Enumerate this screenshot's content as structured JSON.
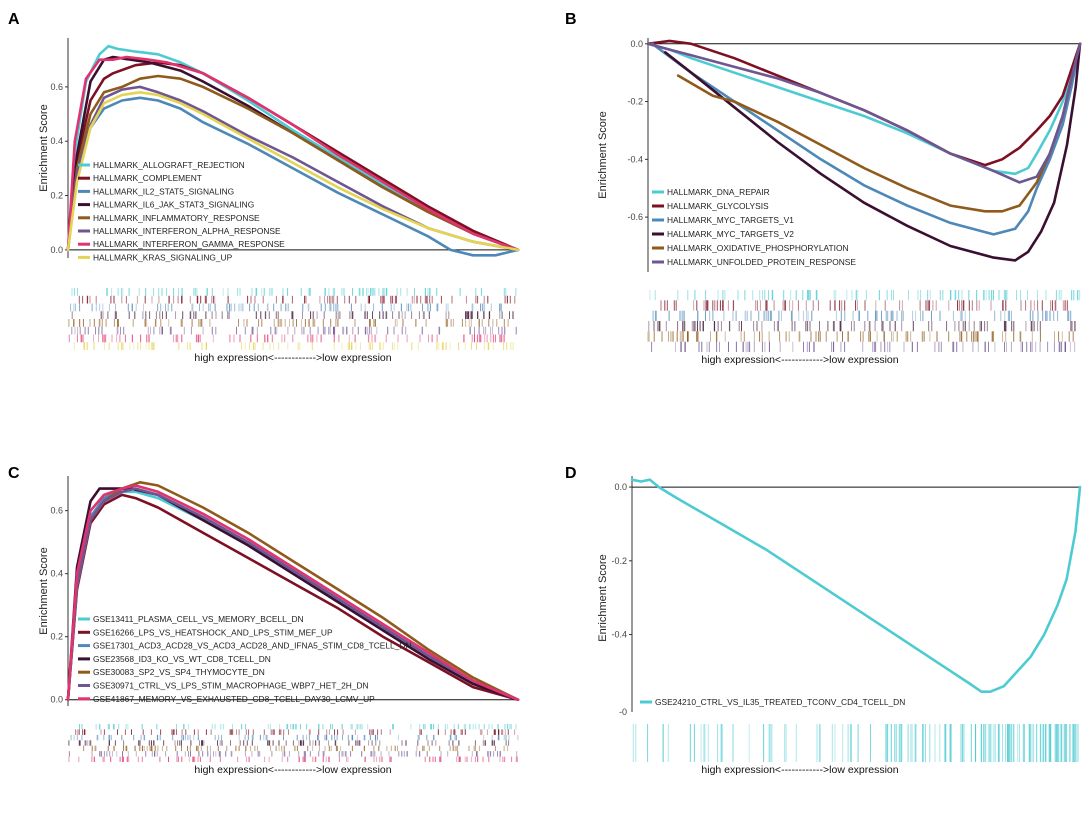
{
  "figure": {
    "palette_note": "GSEA enrichment plots"
  },
  "chart_data": [
    {
      "panel": "A",
      "type": "line",
      "xlabel": "high expression<------------>low expression",
      "ylabel": "Enrichment Score",
      "ylim": [
        -0.03,
        0.78
      ],
      "yticks": [
        0.0,
        0.2,
        0.4,
        0.6
      ],
      "ytick_labels": [
        "0.0",
        "0.2",
        "0.4",
        "0.6"
      ],
      "xlim": [
        0,
        1
      ],
      "legend_position": "lower-left",
      "series": [
        {
          "name": "HALLMARK_ALLOGRAFT_REJECTION",
          "color": "#4ecbd2",
          "x": [
            0,
            0.015,
            0.04,
            0.07,
            0.09,
            0.11,
            0.15,
            0.2,
            0.25,
            0.3,
            0.4,
            0.5,
            0.6,
            0.7,
            0.8,
            0.9,
            0.95,
            1.0
          ],
          "y": [
            0.0,
            0.36,
            0.62,
            0.72,
            0.75,
            0.74,
            0.73,
            0.72,
            0.69,
            0.65,
            0.55,
            0.44,
            0.34,
            0.24,
            0.15,
            0.06,
            0.03,
            0.0
          ]
        },
        {
          "name": "HALLMARK_COMPLEMENT",
          "color": "#7d1022",
          "x": [
            0,
            0.02,
            0.05,
            0.08,
            0.1,
            0.15,
            0.2,
            0.25,
            0.3,
            0.4,
            0.5,
            0.6,
            0.7,
            0.8,
            0.9,
            1.0
          ],
          "y": [
            0.0,
            0.33,
            0.55,
            0.63,
            0.65,
            0.68,
            0.69,
            0.68,
            0.65,
            0.56,
            0.46,
            0.36,
            0.26,
            0.16,
            0.07,
            0.0
          ]
        },
        {
          "name": "HALLMARK_IL2_STAT5_SIGNALING",
          "color": "#4d88b8",
          "x": [
            0,
            0.02,
            0.05,
            0.08,
            0.12,
            0.16,
            0.2,
            0.25,
            0.3,
            0.4,
            0.5,
            0.6,
            0.7,
            0.8,
            0.85,
            0.9,
            0.95,
            1.0
          ],
          "y": [
            0.0,
            0.28,
            0.45,
            0.52,
            0.55,
            0.56,
            0.55,
            0.52,
            0.47,
            0.39,
            0.3,
            0.21,
            0.13,
            0.05,
            0.0,
            -0.02,
            -0.02,
            0.0
          ]
        },
        {
          "name": "HALLMARK_IL6_JAK_STAT3_SIGNALING",
          "color": "#3a0f2f",
          "x": [
            0,
            0.02,
            0.05,
            0.08,
            0.1,
            0.14,
            0.18,
            0.25,
            0.3,
            0.4,
            0.5,
            0.6,
            0.7,
            0.8,
            0.9,
            1.0
          ],
          "y": [
            0.0,
            0.35,
            0.62,
            0.7,
            0.71,
            0.7,
            0.69,
            0.66,
            0.62,
            0.53,
            0.43,
            0.33,
            0.23,
            0.14,
            0.06,
            0.0
          ]
        },
        {
          "name": "HALLMARK_INFLAMMATORY_RESPONSE",
          "color": "#8f5b1c",
          "x": [
            0,
            0.02,
            0.05,
            0.08,
            0.12,
            0.16,
            0.2,
            0.25,
            0.3,
            0.4,
            0.5,
            0.6,
            0.7,
            0.8,
            0.9,
            1.0
          ],
          "y": [
            0.0,
            0.3,
            0.5,
            0.58,
            0.6,
            0.63,
            0.64,
            0.63,
            0.6,
            0.52,
            0.43,
            0.33,
            0.23,
            0.14,
            0.06,
            0.0
          ]
        },
        {
          "name": "HALLMARK_INTERFERON_ALPHA_RESPONSE",
          "color": "#6f5692",
          "x": [
            0,
            0.02,
            0.05,
            0.08,
            0.12,
            0.16,
            0.2,
            0.25,
            0.3,
            0.4,
            0.5,
            0.6,
            0.7,
            0.8,
            0.9,
            1.0
          ],
          "y": [
            0.0,
            0.28,
            0.46,
            0.56,
            0.59,
            0.6,
            0.58,
            0.55,
            0.51,
            0.42,
            0.34,
            0.25,
            0.16,
            0.08,
            0.03,
            0.0
          ]
        },
        {
          "name": "HALLMARK_INTERFERON_GAMMA_RESPONSE",
          "color": "#e0336f",
          "x": [
            0,
            0.015,
            0.04,
            0.07,
            0.1,
            0.13,
            0.18,
            0.22,
            0.3,
            0.4,
            0.5,
            0.6,
            0.7,
            0.8,
            0.9,
            1.0
          ],
          "y": [
            0.0,
            0.4,
            0.63,
            0.7,
            0.7,
            0.71,
            0.7,
            0.69,
            0.65,
            0.56,
            0.46,
            0.35,
            0.25,
            0.15,
            0.06,
            0.0
          ]
        },
        {
          "name": "HALLMARK_KRAS_SIGNALING_UP",
          "color": "#e4d453",
          "x": [
            0,
            0.02,
            0.05,
            0.08,
            0.12,
            0.16,
            0.2,
            0.25,
            0.3,
            0.4,
            0.5,
            0.6,
            0.7,
            0.8,
            0.9,
            1.0
          ],
          "y": [
            0.0,
            0.25,
            0.45,
            0.54,
            0.57,
            0.58,
            0.57,
            0.54,
            0.5,
            0.41,
            0.32,
            0.23,
            0.15,
            0.08,
            0.03,
            0.0
          ]
        }
      ]
    },
    {
      "panel": "B",
      "type": "line",
      "xlabel": "high expression<------------>low expression",
      "ylabel": "Enrichment Score",
      "ylim": [
        -0.79,
        0.02
      ],
      "yticks": [
        0.0,
        -0.2,
        -0.4,
        -0.6
      ],
      "ytick_labels": [
        "0.0",
        "-0.2",
        "-0.4",
        "-0.6"
      ],
      "xlim": [
        0,
        1
      ],
      "legend_position": "lower-left",
      "series": [
        {
          "name": "HALLMARK_DNA_REPAIR",
          "color": "#4ecbd2",
          "x": [
            0,
            0.05,
            0.1,
            0.2,
            0.3,
            0.4,
            0.5,
            0.6,
            0.7,
            0.8,
            0.85,
            0.88,
            0.9,
            0.93,
            0.96,
            0.98,
            1.0
          ],
          "y": [
            0.0,
            -0.02,
            -0.05,
            -0.1,
            -0.15,
            -0.2,
            -0.25,
            -0.31,
            -0.38,
            -0.44,
            -0.45,
            -0.43,
            -0.38,
            -0.3,
            -0.2,
            -0.12,
            0.0
          ]
        },
        {
          "name": "HALLMARK_GLYCOLYSIS",
          "color": "#7d1022",
          "x": [
            0,
            0.05,
            0.1,
            0.2,
            0.3,
            0.4,
            0.5,
            0.6,
            0.7,
            0.78,
            0.82,
            0.86,
            0.9,
            0.93,
            0.96,
            1.0
          ],
          "y": [
            0.0,
            0.01,
            0.0,
            -0.05,
            -0.11,
            -0.17,
            -0.23,
            -0.3,
            -0.38,
            -0.42,
            -0.4,
            -0.36,
            -0.3,
            -0.25,
            -0.18,
            0.0
          ]
        },
        {
          "name": "HALLMARK_MYC_TARGETS_V1",
          "color": "#4d88b8",
          "x": [
            0.01,
            0.1,
            0.2,
            0.3,
            0.4,
            0.5,
            0.6,
            0.7,
            0.8,
            0.85,
            0.88,
            0.9,
            0.93,
            0.96,
            0.98,
            1.0
          ],
          "y": [
            0.0,
            -0.1,
            -0.2,
            -0.3,
            -0.4,
            -0.49,
            -0.56,
            -0.62,
            -0.66,
            -0.64,
            -0.58,
            -0.5,
            -0.4,
            -0.28,
            -0.15,
            0.0
          ]
        },
        {
          "name": "HALLMARK_MYC_TARGETS_V2",
          "color": "#3a0f2f",
          "x": [
            0.04,
            0.1,
            0.2,
            0.3,
            0.4,
            0.5,
            0.6,
            0.7,
            0.8,
            0.85,
            0.88,
            0.91,
            0.94,
            0.97,
            0.99,
            1.0
          ],
          "y": [
            -0.03,
            -0.1,
            -0.22,
            -0.34,
            -0.45,
            -0.55,
            -0.63,
            -0.7,
            -0.74,
            -0.75,
            -0.72,
            -0.65,
            -0.55,
            -0.35,
            -0.15,
            0.0
          ]
        },
        {
          "name": "HALLMARK_OXIDATIVE_PHOSPHORYLATION",
          "color": "#8f5b1c",
          "x": [
            0.07,
            0.15,
            0.2,
            0.3,
            0.4,
            0.5,
            0.6,
            0.7,
            0.78,
            0.82,
            0.86,
            0.9,
            0.93,
            0.96,
            0.98,
            1.0
          ],
          "y": [
            -0.11,
            -0.18,
            -0.2,
            -0.27,
            -0.35,
            -0.43,
            -0.5,
            -0.56,
            -0.58,
            -0.58,
            -0.56,
            -0.48,
            -0.38,
            -0.25,
            -0.12,
            0.0
          ]
        },
        {
          "name": "HALLMARK_UNFOLDED_PROTEIN_RESPONSE",
          "color": "#6f5692",
          "x": [
            0,
            0.05,
            0.1,
            0.2,
            0.3,
            0.4,
            0.5,
            0.6,
            0.7,
            0.8,
            0.86,
            0.9,
            0.93,
            0.96,
            0.98,
            1.0
          ],
          "y": [
            0.0,
            -0.02,
            -0.04,
            -0.08,
            -0.12,
            -0.17,
            -0.23,
            -0.3,
            -0.38,
            -0.44,
            -0.48,
            -0.46,
            -0.38,
            -0.25,
            -0.12,
            0.0
          ]
        }
      ]
    },
    {
      "panel": "C",
      "type": "line",
      "xlabel": "high expression<------------>low expression",
      "ylabel": "Enrichment Score",
      "ylim": [
        -0.02,
        0.71
      ],
      "yticks": [
        0.0,
        0.2,
        0.4,
        0.6
      ],
      "ytick_labels": [
        "0.0",
        "0.2",
        "0.4",
        "0.6"
      ],
      "xlim": [
        0,
        1
      ],
      "legend_position": "lower-left",
      "series": [
        {
          "name": "GSE13411_PLASMA_CELL_VS_MEMORY_BCELL_DN",
          "color": "#4ecbd2",
          "x": [
            0,
            0.02,
            0.05,
            0.08,
            0.12,
            0.15,
            0.2,
            0.3,
            0.4,
            0.5,
            0.6,
            0.7,
            0.8,
            0.9,
            1.0
          ],
          "y": [
            0.0,
            0.38,
            0.58,
            0.64,
            0.66,
            0.66,
            0.64,
            0.57,
            0.49,
            0.4,
            0.31,
            0.22,
            0.13,
            0.05,
            0.0
          ]
        },
        {
          "name": "GSE16266_LPS_VS_HEATSHOCK_AND_LPS_STIM_MEF_UP",
          "color": "#7d1022",
          "x": [
            0,
            0.02,
            0.05,
            0.08,
            0.12,
            0.15,
            0.2,
            0.3,
            0.4,
            0.5,
            0.6,
            0.7,
            0.8,
            0.9,
            1.0
          ],
          "y": [
            0.0,
            0.35,
            0.56,
            0.62,
            0.65,
            0.64,
            0.61,
            0.53,
            0.45,
            0.37,
            0.29,
            0.2,
            0.12,
            0.04,
            0.0
          ]
        },
        {
          "name": "GSE17301_ACD3_ACD28_VS_ACD3_ACD28_AND_IFNA5_STIM_CD8_TCELL_DN",
          "color": "#4d88b8",
          "x": [
            0,
            0.02,
            0.05,
            0.08,
            0.12,
            0.15,
            0.2,
            0.3,
            0.4,
            0.5,
            0.6,
            0.7,
            0.8,
            0.9,
            1.0
          ],
          "y": [
            0.0,
            0.37,
            0.58,
            0.64,
            0.67,
            0.67,
            0.65,
            0.58,
            0.5,
            0.41,
            0.32,
            0.23,
            0.14,
            0.06,
            0.0
          ]
        },
        {
          "name": "GSE23568_ID3_KO_VS_WT_CD8_TCELL_DN",
          "color": "#3a0f2f",
          "x": [
            0,
            0.02,
            0.05,
            0.07,
            0.1,
            0.14,
            0.2,
            0.3,
            0.4,
            0.5,
            0.6,
            0.7,
            0.8,
            0.9,
            1.0
          ],
          "y": [
            0.0,
            0.42,
            0.63,
            0.67,
            0.67,
            0.67,
            0.65,
            0.57,
            0.49,
            0.4,
            0.31,
            0.22,
            0.13,
            0.05,
            0.0
          ]
        },
        {
          "name": "GSE30083_SP2_VS_SP4_THYMOCYTE_DN",
          "color": "#8f5b1c",
          "x": [
            0,
            0.02,
            0.05,
            0.08,
            0.12,
            0.16,
            0.2,
            0.3,
            0.4,
            0.5,
            0.6,
            0.7,
            0.8,
            0.9,
            1.0
          ],
          "y": [
            0.0,
            0.36,
            0.57,
            0.63,
            0.67,
            0.69,
            0.68,
            0.61,
            0.53,
            0.44,
            0.35,
            0.26,
            0.16,
            0.07,
            0.0
          ]
        },
        {
          "name": "GSE30971_CTRL_VS_LPS_STIM_MACROPHAGE_WBP7_HET_2H_DN",
          "color": "#6f5692",
          "x": [
            0,
            0.02,
            0.05,
            0.08,
            0.12,
            0.15,
            0.2,
            0.3,
            0.4,
            0.5,
            0.6,
            0.7,
            0.8,
            0.9,
            1.0
          ],
          "y": [
            0.0,
            0.36,
            0.57,
            0.63,
            0.66,
            0.67,
            0.65,
            0.58,
            0.5,
            0.41,
            0.32,
            0.23,
            0.14,
            0.06,
            0.0
          ]
        },
        {
          "name": "GSE41867_MEMORY_VS_EXHAUSTED_CD8_TCELL_DAY30_LCMV_UP",
          "color": "#e0336f",
          "x": [
            0,
            0.02,
            0.05,
            0.08,
            0.12,
            0.15,
            0.2,
            0.3,
            0.4,
            0.5,
            0.6,
            0.7,
            0.8,
            0.9,
            1.0
          ],
          "y": [
            0.0,
            0.4,
            0.6,
            0.65,
            0.67,
            0.68,
            0.66,
            0.59,
            0.51,
            0.42,
            0.33,
            0.24,
            0.15,
            0.06,
            0.0
          ]
        }
      ]
    },
    {
      "panel": "D",
      "type": "line",
      "xlabel": "high expression<------------>low expression",
      "ylabel": "Enrichment Score",
      "ylim": [
        -0.61,
        0.03
      ],
      "yticks": [
        0.0,
        -0.2,
        -0.4
      ],
      "ytick_labels": [
        "0.0",
        "-0.2",
        "-0.4"
      ],
      "extra_tick_label": "-0",
      "xlim": [
        0,
        1
      ],
      "legend_position": "lower-left",
      "series": [
        {
          "name": "GSE24210_CTRL_VS_IL35_TREATED_TCONV_CD4_TCELL_DN",
          "color": "#4ecbd2",
          "x": [
            0,
            0.02,
            0.04,
            0.06,
            0.1,
            0.2,
            0.3,
            0.4,
            0.5,
            0.6,
            0.7,
            0.75,
            0.78,
            0.8,
            0.83,
            0.86,
            0.89,
            0.92,
            0.95,
            0.97,
            0.99,
            1.0
          ],
          "y": [
            0.02,
            0.015,
            0.02,
            0.0,
            -0.03,
            -0.1,
            -0.17,
            -0.25,
            -0.33,
            -0.41,
            -0.49,
            -0.53,
            -0.555,
            -0.555,
            -0.54,
            -0.5,
            -0.46,
            -0.4,
            -0.32,
            -0.25,
            -0.12,
            0.0
          ]
        }
      ]
    }
  ]
}
